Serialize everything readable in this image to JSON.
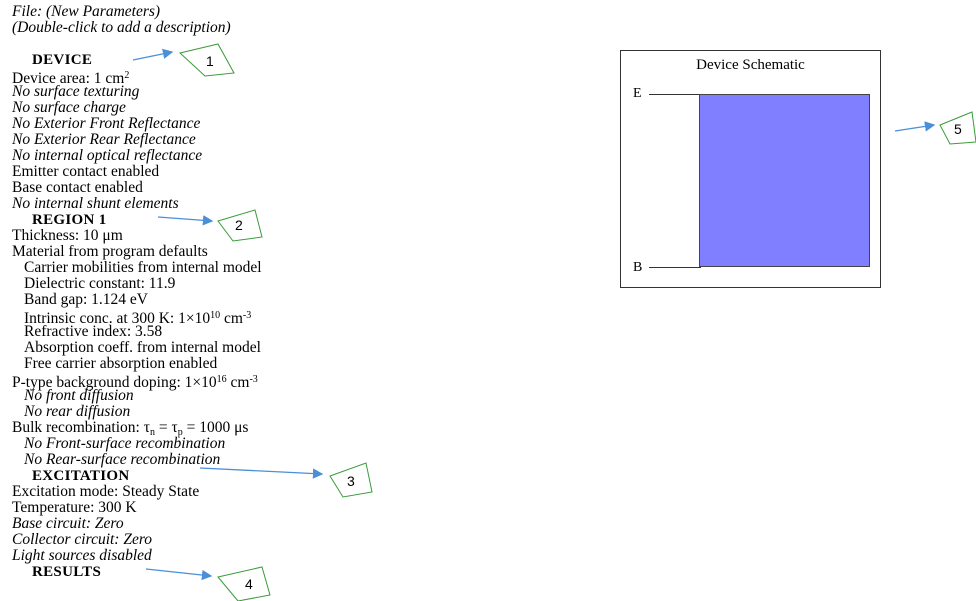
{
  "file": {
    "title": "File: (New Parameters)",
    "hint": "(Double-click to add a description)"
  },
  "device": {
    "heading": "DEVICE",
    "area_prefix": "Device area: 1 cm",
    "area_sup": "2",
    "lines": [
      "No surface texturing",
      "No surface charge",
      "No Exterior Front Reflectance",
      "No Exterior Rear Reflectance",
      "No internal optical reflectance",
      "Emitter contact enabled",
      "Base contact enabled",
      "No internal shunt elements"
    ]
  },
  "region": {
    "heading": "REGION 1",
    "thickness": "Thickness: 10 μm",
    "material": "Material from program defaults",
    "mobility": "Carrier mobilities from internal model",
    "dielectric": "Dielectric constant: 11.9",
    "bandgap": "Band gap: 1.124 eV",
    "intrinsic_prefix": "Intrinsic conc. at 300 K: 1×10",
    "intrinsic_exp": "10",
    "intrinsic_unit": " cm",
    "intrinsic_unit_exp": "-3",
    "refractive": "Refractive index: 3.58",
    "absorption": "Absorption coeff. from internal model",
    "free_carrier": "Free carrier absorption enabled",
    "doping_prefix": "P-type background doping: 1×10",
    "doping_exp": "16",
    "doping_unit": " cm",
    "doping_unit_exp": "-3",
    "no_front_diff": "No front diffusion",
    "no_rear_diff": "No rear diffusion",
    "bulk_prefix": "Bulk recombination: τ",
    "bulk_sub_n": "n",
    "bulk_mid": " = τ",
    "bulk_sub_p": "p",
    "bulk_suffix": " = 1000 μs",
    "no_front_rec": "No Front-surface recombination",
    "no_rear_rec": "No Rear-surface recombination"
  },
  "excitation": {
    "heading": "EXCITATION",
    "mode": "Excitation mode: Steady State",
    "temperature": "Temperature: 300 K",
    "base": "Base circuit: Zero",
    "collector": "Collector circuit: Zero",
    "light": "Light sources disabled"
  },
  "results": {
    "heading": "RESULTS"
  },
  "schematic": {
    "title": "Device Schematic",
    "emitter_label": "E",
    "base_label": "B",
    "device_color": "#7f7fff"
  },
  "annotations": [
    "1",
    "2",
    "3",
    "4",
    "5"
  ],
  "annotation_color": "#4a8fd8",
  "callout_color": "#3a9b3a"
}
